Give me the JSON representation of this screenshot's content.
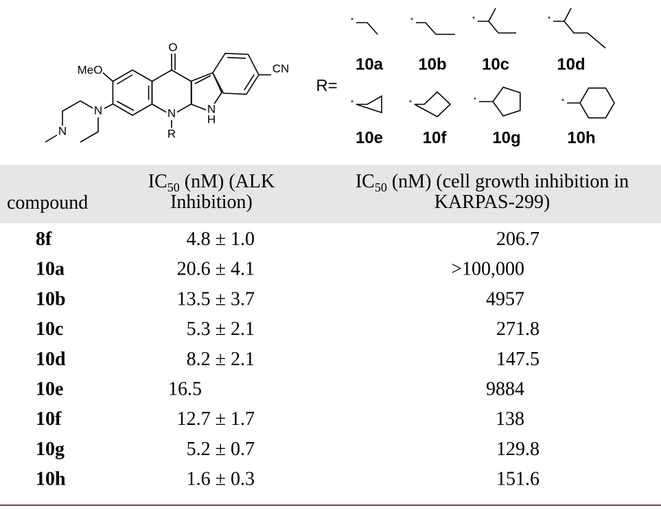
{
  "figure": {
    "atoms": {
      "methoxy": "MeO",
      "oxo": "O",
      "cyano": "CN",
      "n_pip1": "N",
      "n_pip2": "N",
      "n_ring": "N",
      "nh_n": "N",
      "nh_h": "H",
      "r": "R"
    },
    "r_label": "R=",
    "substituents": [
      {
        "attach": "*",
        "label": "10a"
      },
      {
        "attach": "*",
        "label": "10b"
      },
      {
        "attach": "*",
        "label": "10c"
      },
      {
        "attach": "*",
        "label": "10d"
      },
      {
        "attach": "*",
        "label": "10e"
      },
      {
        "attach": "*",
        "label": "10f"
      },
      {
        "attach": "*",
        "label": "10g"
      },
      {
        "attach": "*",
        "label": "10h"
      }
    ]
  },
  "table": {
    "headers": [
      {
        "text": "compound"
      },
      {
        "pre": "IC",
        "sub": "50",
        "post": " (nM) (ALK",
        "line2": "Inhibition)"
      },
      {
        "pre": "IC",
        "sub": "50",
        "post": " (nM) (cell growth inhibition in",
        "line2": "KARPAS-299)"
      }
    ],
    "rows": [
      [
        "8f",
        "4.8 ± 1.0",
        "206.7"
      ],
      [
        "10a",
        "20.6 ± 4.1",
        ">100,000"
      ],
      [
        "10b",
        "13.5 ± 3.7",
        "4957"
      ],
      [
        "10c",
        "5.3 ± 2.1",
        "271.8"
      ],
      [
        "10d",
        "8.2 ± 2.1",
        "147.5"
      ],
      [
        "10e",
        "16.5",
        "9884"
      ],
      [
        "10f",
        "12.7 ± 1.7",
        "138"
      ],
      [
        "10g",
        "5.2 ± 0.7",
        "129.8"
      ],
      [
        "10h",
        "1.6 ± 0.3",
        "151.6"
      ]
    ]
  }
}
